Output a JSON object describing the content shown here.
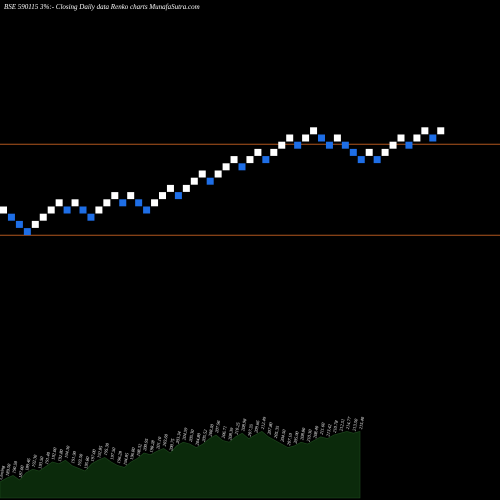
{
  "header": {
    "title": "BSE 590115 3%:- Closing Daily data  Renko  charts MunafaSutra.com"
  },
  "chart_data": {
    "type": "renko",
    "colors": {
      "background": "#000000",
      "up_brick": "#ffffff",
      "down_brick": "#1e6ee6",
      "reference_line": "#b0561e",
      "volume_area": "#0b2a0b"
    },
    "bricks": [
      {
        "dir": "up",
        "level": 201
      },
      {
        "dir": "down",
        "level": 200
      },
      {
        "dir": "down",
        "level": 199
      },
      {
        "dir": "down",
        "level": 198
      },
      {
        "dir": "up",
        "level": 199
      },
      {
        "dir": "up",
        "level": 200
      },
      {
        "dir": "up",
        "level": 201
      },
      {
        "dir": "up",
        "level": 202
      },
      {
        "dir": "down",
        "level": 201
      },
      {
        "dir": "up",
        "level": 202
      },
      {
        "dir": "down",
        "level": 201
      },
      {
        "dir": "down",
        "level": 200
      },
      {
        "dir": "up",
        "level": 201
      },
      {
        "dir": "up",
        "level": 202
      },
      {
        "dir": "up",
        "level": 203
      },
      {
        "dir": "down",
        "level": 202
      },
      {
        "dir": "up",
        "level": 203
      },
      {
        "dir": "down",
        "level": 202
      },
      {
        "dir": "down",
        "level": 201
      },
      {
        "dir": "up",
        "level": 202
      },
      {
        "dir": "up",
        "level": 203
      },
      {
        "dir": "up",
        "level": 204
      },
      {
        "dir": "down",
        "level": 203
      },
      {
        "dir": "up",
        "level": 204
      },
      {
        "dir": "up",
        "level": 205
      },
      {
        "dir": "up",
        "level": 206
      },
      {
        "dir": "down",
        "level": 205
      },
      {
        "dir": "up",
        "level": 206
      },
      {
        "dir": "up",
        "level": 207
      },
      {
        "dir": "up",
        "level": 208
      },
      {
        "dir": "down",
        "level": 207
      },
      {
        "dir": "up",
        "level": 208
      },
      {
        "dir": "up",
        "level": 209
      },
      {
        "dir": "down",
        "level": 208
      },
      {
        "dir": "up",
        "level": 209
      },
      {
        "dir": "up",
        "level": 210
      },
      {
        "dir": "up",
        "level": 211
      },
      {
        "dir": "down",
        "level": 210
      },
      {
        "dir": "up",
        "level": 211
      },
      {
        "dir": "up",
        "level": 212
      },
      {
        "dir": "down",
        "level": 211
      },
      {
        "dir": "down",
        "level": 210
      },
      {
        "dir": "up",
        "level": 211
      },
      {
        "dir": "down",
        "level": 210
      },
      {
        "dir": "down",
        "level": 209
      },
      {
        "dir": "down",
        "level": 208
      },
      {
        "dir": "up",
        "level": 209
      },
      {
        "dir": "down",
        "level": 208
      },
      {
        "dir": "up",
        "level": 209
      },
      {
        "dir": "up",
        "level": 210
      },
      {
        "dir": "up",
        "level": 211
      },
      {
        "dir": "down",
        "level": 210
      },
      {
        "dir": "up",
        "level": 211
      },
      {
        "dir": "up",
        "level": 212
      },
      {
        "dir": "down",
        "level": 211
      },
      {
        "dir": "up",
        "level": 212
      }
    ],
    "reference_lines": [
      209.5,
      197.5
    ],
    "volume_levels": [
      0.18,
      0.22,
      0.25,
      0.2,
      0.28,
      0.32,
      0.3,
      0.35,
      0.4,
      0.38,
      0.42,
      0.36,
      0.33,
      0.3,
      0.38,
      0.42,
      0.45,
      0.4,
      0.36,
      0.34,
      0.4,
      0.44,
      0.5,
      0.48,
      0.52,
      0.55,
      0.5,
      0.58,
      0.62,
      0.6,
      0.56,
      0.6,
      0.66,
      0.7,
      0.64,
      0.62,
      0.68,
      0.72,
      0.66,
      0.7,
      0.74,
      0.68,
      0.64,
      0.6,
      0.56,
      0.58,
      0.62,
      0.6,
      0.64,
      0.68,
      0.66,
      0.7,
      0.72,
      0.74,
      0.72,
      0.74
    ],
    "volume_labels": [
      "Closing",
      "189.50",
      "190.50",
      "187.00",
      "189.46",
      "192.30",
      "193.50",
      "191.40",
      "192.00",
      "192.80",
      "194.30",
      "191.90",
      "193.50",
      "195.80",
      "197.00",
      "192.85",
      "195.30",
      "197.50",
      "196.28",
      "194.85",
      "196.80",
      "198.32",
      "200.95",
      "198.28",
      "201.10",
      "203.60",
      "200.75",
      "203.34",
      "204.59",
      "205.30",
      "204.80",
      "205.52",
      "208.30",
      "207.96",
      "206.71",
      "208.39",
      "210.25",
      "208.98",
      "207.35",
      "209.66",
      "212.49",
      "207.80",
      "205.35",
      "204.50",
      "207.10",
      "205.90",
      "208.80",
      "210.30",
      "208.40",
      "211.60",
      "213.42",
      "210.78",
      "212.51",
      "214.77",
      "213.50",
      "215.40"
    ]
  }
}
